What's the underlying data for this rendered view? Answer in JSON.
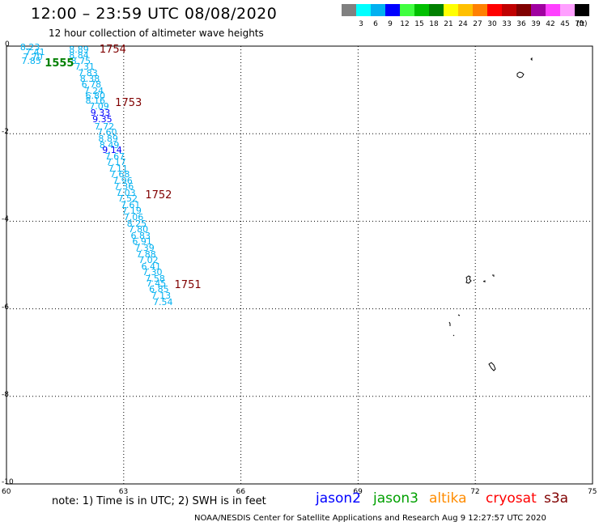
{
  "header": {
    "title": "12:00 – 23:59 UTC 08/08/2020",
    "subtitle": "12 hour collection of altimeter wave heights"
  },
  "legend": {
    "unit": "(ft)",
    "items": [
      {
        "label": "3",
        "color": "#808080"
      },
      {
        "label": "6",
        "color": "#00ffff"
      },
      {
        "label": "9",
        "color": "#00b0f0"
      },
      {
        "label": "12",
        "color": "#0000ff"
      },
      {
        "label": "15",
        "color": "#40ff40"
      },
      {
        "label": "18",
        "color": "#00c000"
      },
      {
        "label": "21",
        "color": "#008000"
      },
      {
        "label": "24",
        "color": "#ffff00"
      },
      {
        "label": "27",
        "color": "#ffc000"
      },
      {
        "label": "30",
        "color": "#ff8000"
      },
      {
        "label": "33",
        "color": "#ff0000"
      },
      {
        "label": "36",
        "color": "#c00000"
      },
      {
        "label": "39",
        "color": "#800000"
      },
      {
        "label": "42",
        "color": "#a000a0"
      },
      {
        "label": "45",
        "color": "#ff40ff"
      },
      {
        "label": "70",
        "color": "#ffa0ff"
      },
      {
        "label": "",
        "color": "#000000"
      }
    ]
  },
  "map": {
    "lon_ticks": [
      "60",
      "63",
      "66",
      "69",
      "72",
      "75"
    ],
    "lat_ticks": [
      "0",
      "-2",
      "-4",
      "-6",
      "-8",
      "-10"
    ],
    "lon_range": [
      60,
      75
    ],
    "lat_range": [
      -10,
      0
    ]
  },
  "wave_heights": [
    {
      "text": "8.23",
      "lon": 60.35,
      "lat": -0.03,
      "color": "#00b0f0"
    },
    {
      "text": "7.41",
      "lon": 60.48,
      "lat": -0.14,
      "color": "#00b0f0"
    },
    {
      "text": "7.70",
      "lon": 60.42,
      "lat": -0.25,
      "color": "#00b0f0"
    },
    {
      "text": "7.85",
      "lon": 60.38,
      "lat": -0.36,
      "color": "#00b0f0"
    },
    {
      "text": "8.89",
      "lon": 61.6,
      "lat": -0.1,
      "color": "#00b0f0"
    },
    {
      "text": "8.84",
      "lon": 61.6,
      "lat": -0.22,
      "color": "#00b0f0"
    },
    {
      "text": "8.75",
      "lon": 61.65,
      "lat": -0.36,
      "color": "#00b0f0"
    },
    {
      "text": "7.31",
      "lon": 61.75,
      "lat": -0.48,
      "color": "#00b0f0"
    },
    {
      "text": "7.83",
      "lon": 61.83,
      "lat": -0.62,
      "color": "#00b0f0"
    },
    {
      "text": "8.38",
      "lon": 61.88,
      "lat": -0.76,
      "color": "#00b0f0"
    },
    {
      "text": "6.78",
      "lon": 61.92,
      "lat": -0.89,
      "color": "#00b0f0"
    },
    {
      "text": "7.24",
      "lon": 61.98,
      "lat": -1.03,
      "color": "#00b0f0"
    },
    {
      "text": "6.80",
      "lon": 62.02,
      "lat": -1.15,
      "color": "#00b0f0"
    },
    {
      "text": "8.16",
      "lon": 62.02,
      "lat": -1.26,
      "color": "#00b0f0"
    },
    {
      "text": "7.09",
      "lon": 62.12,
      "lat": -1.39,
      "color": "#00b0f0"
    },
    {
      "text": "9.33",
      "lon": 62.15,
      "lat": -1.54,
      "color": "#0000ff"
    },
    {
      "text": "9.35",
      "lon": 62.2,
      "lat": -1.69,
      "color": "#0000ff"
    },
    {
      "text": "7.72",
      "lon": 62.25,
      "lat": -1.84,
      "color": "#00b0f0"
    },
    {
      "text": "7.60",
      "lon": 62.32,
      "lat": -1.98,
      "color": "#00b0f0"
    },
    {
      "text": "8.89",
      "lon": 62.35,
      "lat": -2.13,
      "color": "#00b0f0"
    },
    {
      "text": "8.49",
      "lon": 62.38,
      "lat": -2.27,
      "color": "#00b0f0"
    },
    {
      "text": "9.14",
      "lon": 62.45,
      "lat": -2.38,
      "color": "#0000ff"
    },
    {
      "text": "7.67",
      "lon": 62.52,
      "lat": -2.53,
      "color": "#00b0f0"
    },
    {
      "text": "7.17",
      "lon": 62.55,
      "lat": -2.67,
      "color": "#00b0f0"
    },
    {
      "text": "7.11",
      "lon": 62.6,
      "lat": -2.81,
      "color": "#00b0f0"
    },
    {
      "text": "7.68",
      "lon": 62.65,
      "lat": -2.94,
      "color": "#00b0f0"
    },
    {
      "text": "7.96",
      "lon": 62.72,
      "lat": -3.08,
      "color": "#00b0f0"
    },
    {
      "text": "7.36",
      "lon": 62.75,
      "lat": -3.22,
      "color": "#00b0f0"
    },
    {
      "text": "7.03",
      "lon": 62.8,
      "lat": -3.36,
      "color": "#00b0f0"
    },
    {
      "text": "7.52",
      "lon": 62.85,
      "lat": -3.5,
      "color": "#00b0f0"
    },
    {
      "text": "7.61",
      "lon": 62.92,
      "lat": -3.64,
      "color": "#00b0f0"
    },
    {
      "text": "7.19",
      "lon": 62.95,
      "lat": -3.78,
      "color": "#00b0f0"
    },
    {
      "text": "7.06",
      "lon": 63.0,
      "lat": -3.92,
      "color": "#00b0f0"
    },
    {
      "text": "8.25",
      "lon": 63.08,
      "lat": -4.06,
      "color": "#00b0f0"
    },
    {
      "text": "7.80",
      "lon": 63.12,
      "lat": -4.2,
      "color": "#00b0f0"
    },
    {
      "text": "6.83",
      "lon": 63.18,
      "lat": -4.34,
      "color": "#00b0f0"
    },
    {
      "text": "6.91",
      "lon": 63.22,
      "lat": -4.48,
      "color": "#00b0f0"
    },
    {
      "text": "7.39",
      "lon": 63.28,
      "lat": -4.62,
      "color": "#00b0f0"
    },
    {
      "text": "7.88",
      "lon": 63.32,
      "lat": -4.76,
      "color": "#00b0f0"
    },
    {
      "text": "7.02",
      "lon": 63.38,
      "lat": -4.9,
      "color": "#00b0f0"
    },
    {
      "text": "6.41",
      "lon": 63.45,
      "lat": -5.04,
      "color": "#00b0f0"
    },
    {
      "text": "7.30",
      "lon": 63.48,
      "lat": -5.18,
      "color": "#00b0f0"
    },
    {
      "text": "7.58",
      "lon": 63.55,
      "lat": -5.32,
      "color": "#00b0f0"
    },
    {
      "text": "7.45",
      "lon": 63.58,
      "lat": -5.43,
      "color": "#00b0f0"
    },
    {
      "text": "6.85",
      "lon": 63.65,
      "lat": -5.57,
      "color": "#00b0f0"
    },
    {
      "text": "7.13",
      "lon": 63.7,
      "lat": -5.71,
      "color": "#00b0f0"
    },
    {
      "text": "7.54",
      "lon": 63.75,
      "lat": -5.86,
      "color": "#00b0f0"
    }
  ],
  "time_labels": [
    {
      "text": "1754",
      "lon": 62.38,
      "lat": -0.1,
      "color": "#800000"
    },
    {
      "text": "1555",
      "lon": 60.98,
      "lat": -0.4,
      "color": "#008000"
    },
    {
      "text": "1753",
      "lon": 62.78,
      "lat": -1.32,
      "color": "#800000"
    },
    {
      "text": "1752",
      "lon": 63.55,
      "lat": -3.42,
      "color": "#800000"
    },
    {
      "text": "1751",
      "lon": 64.3,
      "lat": -5.48,
      "color": "#800000"
    }
  ],
  "notes": {
    "note": "note:  1) Time is in UTC;  2) SWH is in feet",
    "footer": "NOAA/NESDIS Center for Satellite Applications and Research     Aug  9 12:27:57 UTC 2020"
  },
  "satellites": [
    {
      "name": "jason2",
      "color": "#0000ff"
    },
    {
      "name": "jason3",
      "color": "#00a000"
    },
    {
      "name": "altika",
      "color": "#ff8c00"
    },
    {
      "name": "cryosat",
      "color": "#ff0000"
    },
    {
      "name": "s3a",
      "color": "#800000"
    }
  ]
}
